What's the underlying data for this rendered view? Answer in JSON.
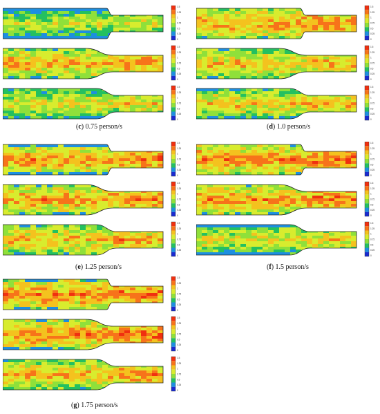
{
  "panels": [
    {
      "id": "c",
      "label": "c",
      "caption": "0.75 person/s",
      "seed": 11,
      "bias": [
        0.55,
        0.75,
        0.62
      ],
      "outerBlue": [
        1.0,
        0.15,
        0.2
      ]
    },
    {
      "id": "d",
      "label": "d",
      "caption": "1.0 person/s",
      "seed": 23,
      "bias": [
        0.78,
        0.7,
        0.68
      ],
      "outerBlue": [
        0.05,
        0.05,
        0.35
      ]
    },
    {
      "id": "e",
      "label": "e",
      "caption": "1.25 person/s",
      "seed": 37,
      "bias": [
        0.8,
        0.78,
        0.72
      ],
      "outerBlue": [
        0.9,
        0.25,
        0.2
      ]
    },
    {
      "id": "f",
      "label": "f",
      "caption": "1.5 person/s",
      "seed": 41,
      "bias": [
        0.82,
        0.8,
        0.62
      ],
      "outerBlue": [
        0.05,
        0.25,
        0.9
      ]
    },
    {
      "id": "g",
      "label": "g",
      "caption": "1.75 person/s",
      "seed": 53,
      "bias": [
        0.82,
        0.82,
        0.74
      ],
      "outerBlue": [
        0.4,
        0.55,
        0.1
      ]
    }
  ],
  "colorbar": {
    "ticks_top": [
      "1.5",
      "1.25",
      "1",
      "0.75",
      "0.5",
      "0.25",
      "0"
    ],
    "colors": [
      "#f03010",
      "#f7731a",
      "#f4c21e",
      "#d8ec2e",
      "#8fe03a",
      "#24c060",
      "#1d8fe0",
      "#1a2ad0"
    ]
  }
}
